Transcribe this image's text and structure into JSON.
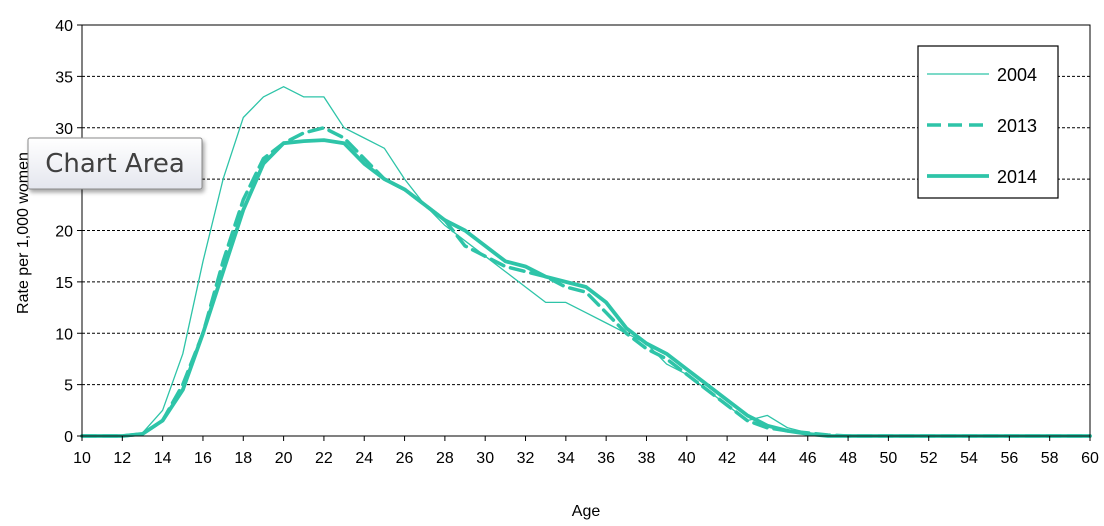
{
  "chart_data": {
    "type": "line",
    "title": "",
    "xlabel": "Age",
    "ylabel": "Rate per 1,000 women",
    "xlim": [
      10,
      60
    ],
    "ylim": [
      0,
      40
    ],
    "x_ticks": [
      10,
      12,
      14,
      16,
      18,
      20,
      22,
      24,
      26,
      28,
      30,
      32,
      34,
      36,
      38,
      40,
      42,
      44,
      46,
      48,
      50,
      52,
      54,
      56,
      58,
      60
    ],
    "y_ticks": [
      0,
      5,
      10,
      15,
      20,
      25,
      30,
      35,
      40
    ],
    "grid": "horizontal dashed",
    "legend_position": "top-right",
    "series": [
      {
        "name": "2004",
        "color": "#2ec4a8",
        "style": "thin-solid",
        "x": [
          10,
          11,
          12,
          13,
          14,
          15,
          16,
          17,
          18,
          19,
          20,
          21,
          22,
          23,
          24,
          25,
          26,
          27,
          28,
          29,
          30,
          31,
          32,
          33,
          34,
          35,
          36,
          37,
          38,
          39,
          40,
          41,
          42,
          43,
          44,
          45,
          46,
          47,
          48,
          49,
          50,
          60
        ],
        "y": [
          0,
          0,
          0,
          0.3,
          2.5,
          8,
          17,
          25,
          31,
          33,
          34,
          33,
          33,
          30,
          29,
          28,
          25,
          22.5,
          20.5,
          19,
          17.5,
          16,
          14.5,
          13,
          13,
          12,
          11,
          10,
          9,
          7,
          6,
          4.5,
          3,
          1.5,
          2,
          0.8,
          0.3,
          0.1,
          0,
          0,
          0,
          0
        ]
      },
      {
        "name": "2013",
        "color": "#2ec4a8",
        "style": "dashed",
        "x": [
          10,
          11,
          12,
          13,
          14,
          15,
          16,
          17,
          18,
          19,
          20,
          21,
          22,
          23,
          24,
          25,
          26,
          27,
          28,
          29,
          30,
          31,
          32,
          33,
          34,
          35,
          36,
          37,
          38,
          39,
          40,
          41,
          42,
          43,
          44,
          45,
          46,
          47,
          48,
          49,
          50,
          60
        ],
        "y": [
          0,
          0,
          0,
          0.2,
          1.5,
          5,
          10,
          17,
          23,
          27,
          28.5,
          29.5,
          30,
          29,
          27,
          25,
          24,
          22.5,
          21,
          18.5,
          17.5,
          16.5,
          16,
          15.5,
          14.5,
          14,
          12,
          10,
          8.5,
          7.5,
          6,
          4.5,
          3,
          1.5,
          0.8,
          0.5,
          0.3,
          0.1,
          0,
          0,
          0,
          0
        ]
      },
      {
        "name": "2014",
        "color": "#2ec4a8",
        "style": "thick-solid",
        "x": [
          10,
          11,
          12,
          13,
          14,
          15,
          16,
          17,
          18,
          19,
          20,
          21,
          22,
          23,
          24,
          25,
          26,
          27,
          28,
          29,
          30,
          31,
          32,
          33,
          34,
          35,
          36,
          37,
          38,
          39,
          40,
          41,
          42,
          43,
          44,
          45,
          46,
          47,
          48,
          49,
          50,
          60
        ],
        "y": [
          0,
          0,
          0,
          0.2,
          1.5,
          4.5,
          10,
          16,
          22,
          26.5,
          28.5,
          28.7,
          28.8,
          28.5,
          26.5,
          25,
          24,
          22.5,
          21,
          20,
          18.5,
          17,
          16.5,
          15.5,
          15,
          14.5,
          13,
          10.5,
          9,
          8,
          6.5,
          5,
          3.5,
          2,
          1,
          0.5,
          0.2,
          0,
          0,
          0,
          0,
          0
        ]
      }
    ]
  },
  "tooltip": {
    "text": "Chart Area"
  }
}
